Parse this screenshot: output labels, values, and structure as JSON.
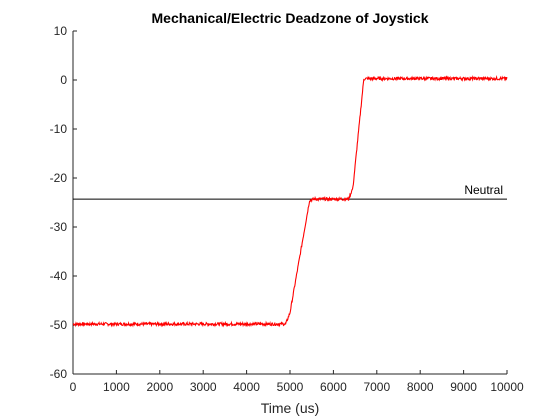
{
  "chart_data": {
    "type": "line",
    "title": "Mechanical/Electric Deadzone of Joystick",
    "xlabel": "Time (us)",
    "ylabel": "",
    "xlim": [
      0,
      10000
    ],
    "ylim": [
      -60,
      10
    ],
    "x_ticks": [
      0,
      1000,
      2000,
      3000,
      4000,
      5000,
      6000,
      7000,
      8000,
      9000,
      10000
    ],
    "y_ticks": [
      -60,
      -50,
      -40,
      -30,
      -20,
      -10,
      0,
      10
    ],
    "grid": false,
    "legend": "none",
    "series": [
      {
        "color": "#ff0000",
        "x": [
          0,
          4900,
          5000,
          5450,
          5550,
          6350,
          6450,
          6700,
          6800,
          10000
        ],
        "y": [
          -49.8,
          -49.8,
          -47.5,
          -24.6,
          -24.3,
          -24.3,
          -22.0,
          0.2,
          0.3,
          0.3
        ]
      }
    ],
    "reference_line": {
      "label": "Neutral",
      "y": -24.3,
      "color": "#000000"
    }
  }
}
